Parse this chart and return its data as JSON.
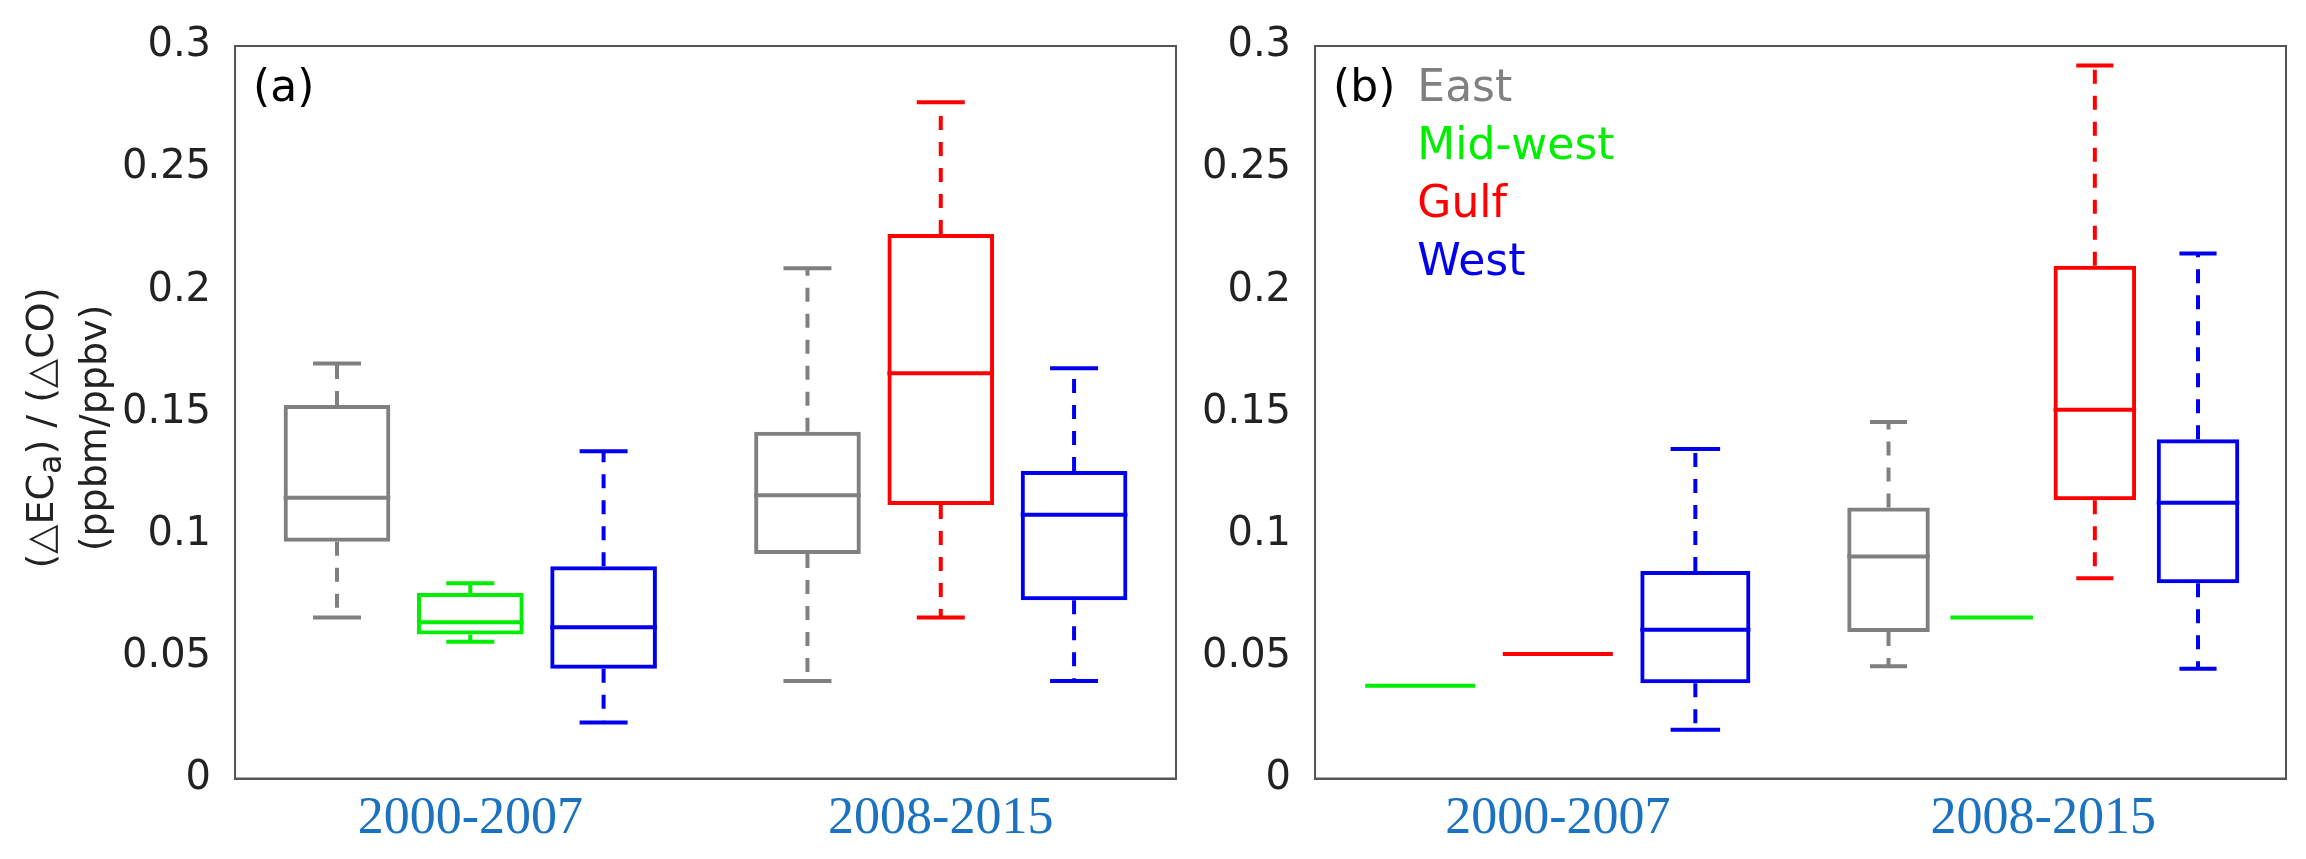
{
  "chart_data": [
    {
      "type": "box",
      "ylabel": "(△EC$_{a}$) / (△CO)\n(ppbm/ppbv)",
      "categories": [
        "2000-2007",
        "2008-2015"
      ],
      "ylim": [
        0,
        0.3
      ],
      "yticks": [
        0,
        0.05,
        0.1,
        0.15,
        0.2,
        0.25,
        0.3
      ],
      "grid": false,
      "legend": false,
      "annotations": [
        "(a)"
      ],
      "series": [
        {
          "color": "#808080",
          "boxes": [
            {
              "low": 0.066,
              "q1": 0.097,
              "median": 0.115,
              "q3": 0.153,
              "high": 0.17
            },
            {
              "low": 0.04,
              "q1": 0.092,
              "median": 0.116,
              "q3": 0.142,
              "high": 0.209
            }
          ]
        },
        {
          "color": "#00ee00",
          "boxes": [
            {
              "low": 0.056,
              "q1": 0.059,
              "median": 0.064,
              "q3": 0.076,
              "high": 0.08
            },
            null
          ]
        },
        {
          "color": "#ff0000",
          "boxes": [
            null,
            {
              "low": 0.066,
              "q1": 0.112,
              "median": 0.166,
              "q3": 0.223,
              "high": 0.277
            }
          ]
        },
        {
          "color": "#0000ee",
          "boxes": [
            {
              "low": 0.023,
              "q1": 0.045,
              "median": 0.062,
              "q3": 0.087,
              "high": 0.134
            },
            {
              "low": 0.04,
              "q1": 0.073,
              "median": 0.108,
              "q3": 0.126,
              "high": 0.168
            }
          ]
        }
      ]
    },
    {
      "type": "box",
      "categories": [
        "2000-2007",
        "2008-2015"
      ],
      "ylim": [
        0,
        0.3
      ],
      "yticks": [
        0,
        0.05,
        0.1,
        0.15,
        0.2,
        0.25,
        0.3
      ],
      "grid": false,
      "legend": "top left",
      "annotations": [
        "(b)"
      ],
      "series": [
        {
          "name": "East",
          "color": "#808080",
          "boxes": [
            null,
            {
              "low": 0.046,
              "q1": 0.06,
              "median": 0.091,
              "q3": 0.111,
              "high": 0.146
            }
          ]
        },
        {
          "name": "Mid-west",
          "color": "#00ee00",
          "boxes": [
            {
              "low": 0.038,
              "q1": 0.038,
              "median": 0.038,
              "q3": 0.038,
              "high": 0.038
            },
            {
              "low": 0.066,
              "q1": 0.066,
              "median": 0.066,
              "q3": 0.066,
              "high": 0.066
            }
          ]
        },
        {
          "name": "Gulf",
          "color": "#ff0000",
          "boxes": [
            {
              "low": 0.051,
              "q1": 0.051,
              "median": 0.051,
              "q3": 0.051,
              "high": 0.051
            },
            {
              "low": 0.082,
              "q1": 0.114,
              "median": 0.151,
              "q3": 0.21,
              "high": 0.292
            }
          ]
        },
        {
          "name": "West",
          "color": "#0000ee",
          "boxes": [
            {
              "low": 0.02,
              "q1": 0.039,
              "median": 0.061,
              "q3": 0.085,
              "high": 0.135
            },
            {
              "low": 0.045,
              "q1": 0.08,
              "median": 0.113,
              "q3": 0.139,
              "high": 0.215
            }
          ]
        }
      ]
    }
  ]
}
